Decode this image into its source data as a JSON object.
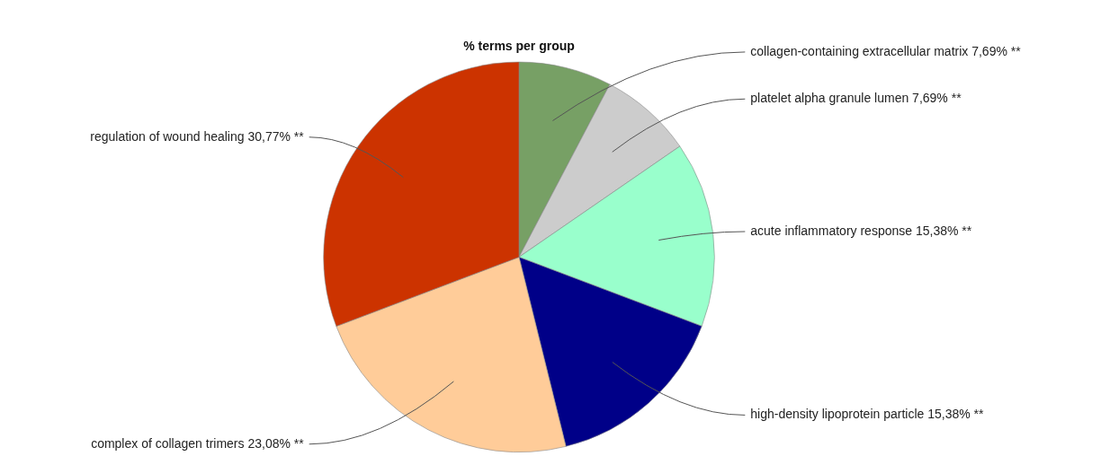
{
  "chart_data": {
    "type": "pie",
    "title": "% terms per group",
    "categories": [
      "collagen-containing extracellular matrix",
      "platelet alpha granule lumen",
      "acute inflammatory response",
      "high-density lipoprotein particle",
      "complex of collagen trimers",
      "regulation of wound healing"
    ],
    "values": [
      7.69,
      7.69,
      15.38,
      15.38,
      23.08,
      30.77
    ],
    "colors": [
      "#77a065",
      "#cccccc",
      "#99ffcc",
      "#000088",
      "#ffcc99",
      "#cc3300"
    ],
    "value_labels": [
      "7,69% **",
      "7,69% **",
      "15,38% **",
      "15,38% **",
      "23,08% **",
      "30,77% **"
    ]
  }
}
